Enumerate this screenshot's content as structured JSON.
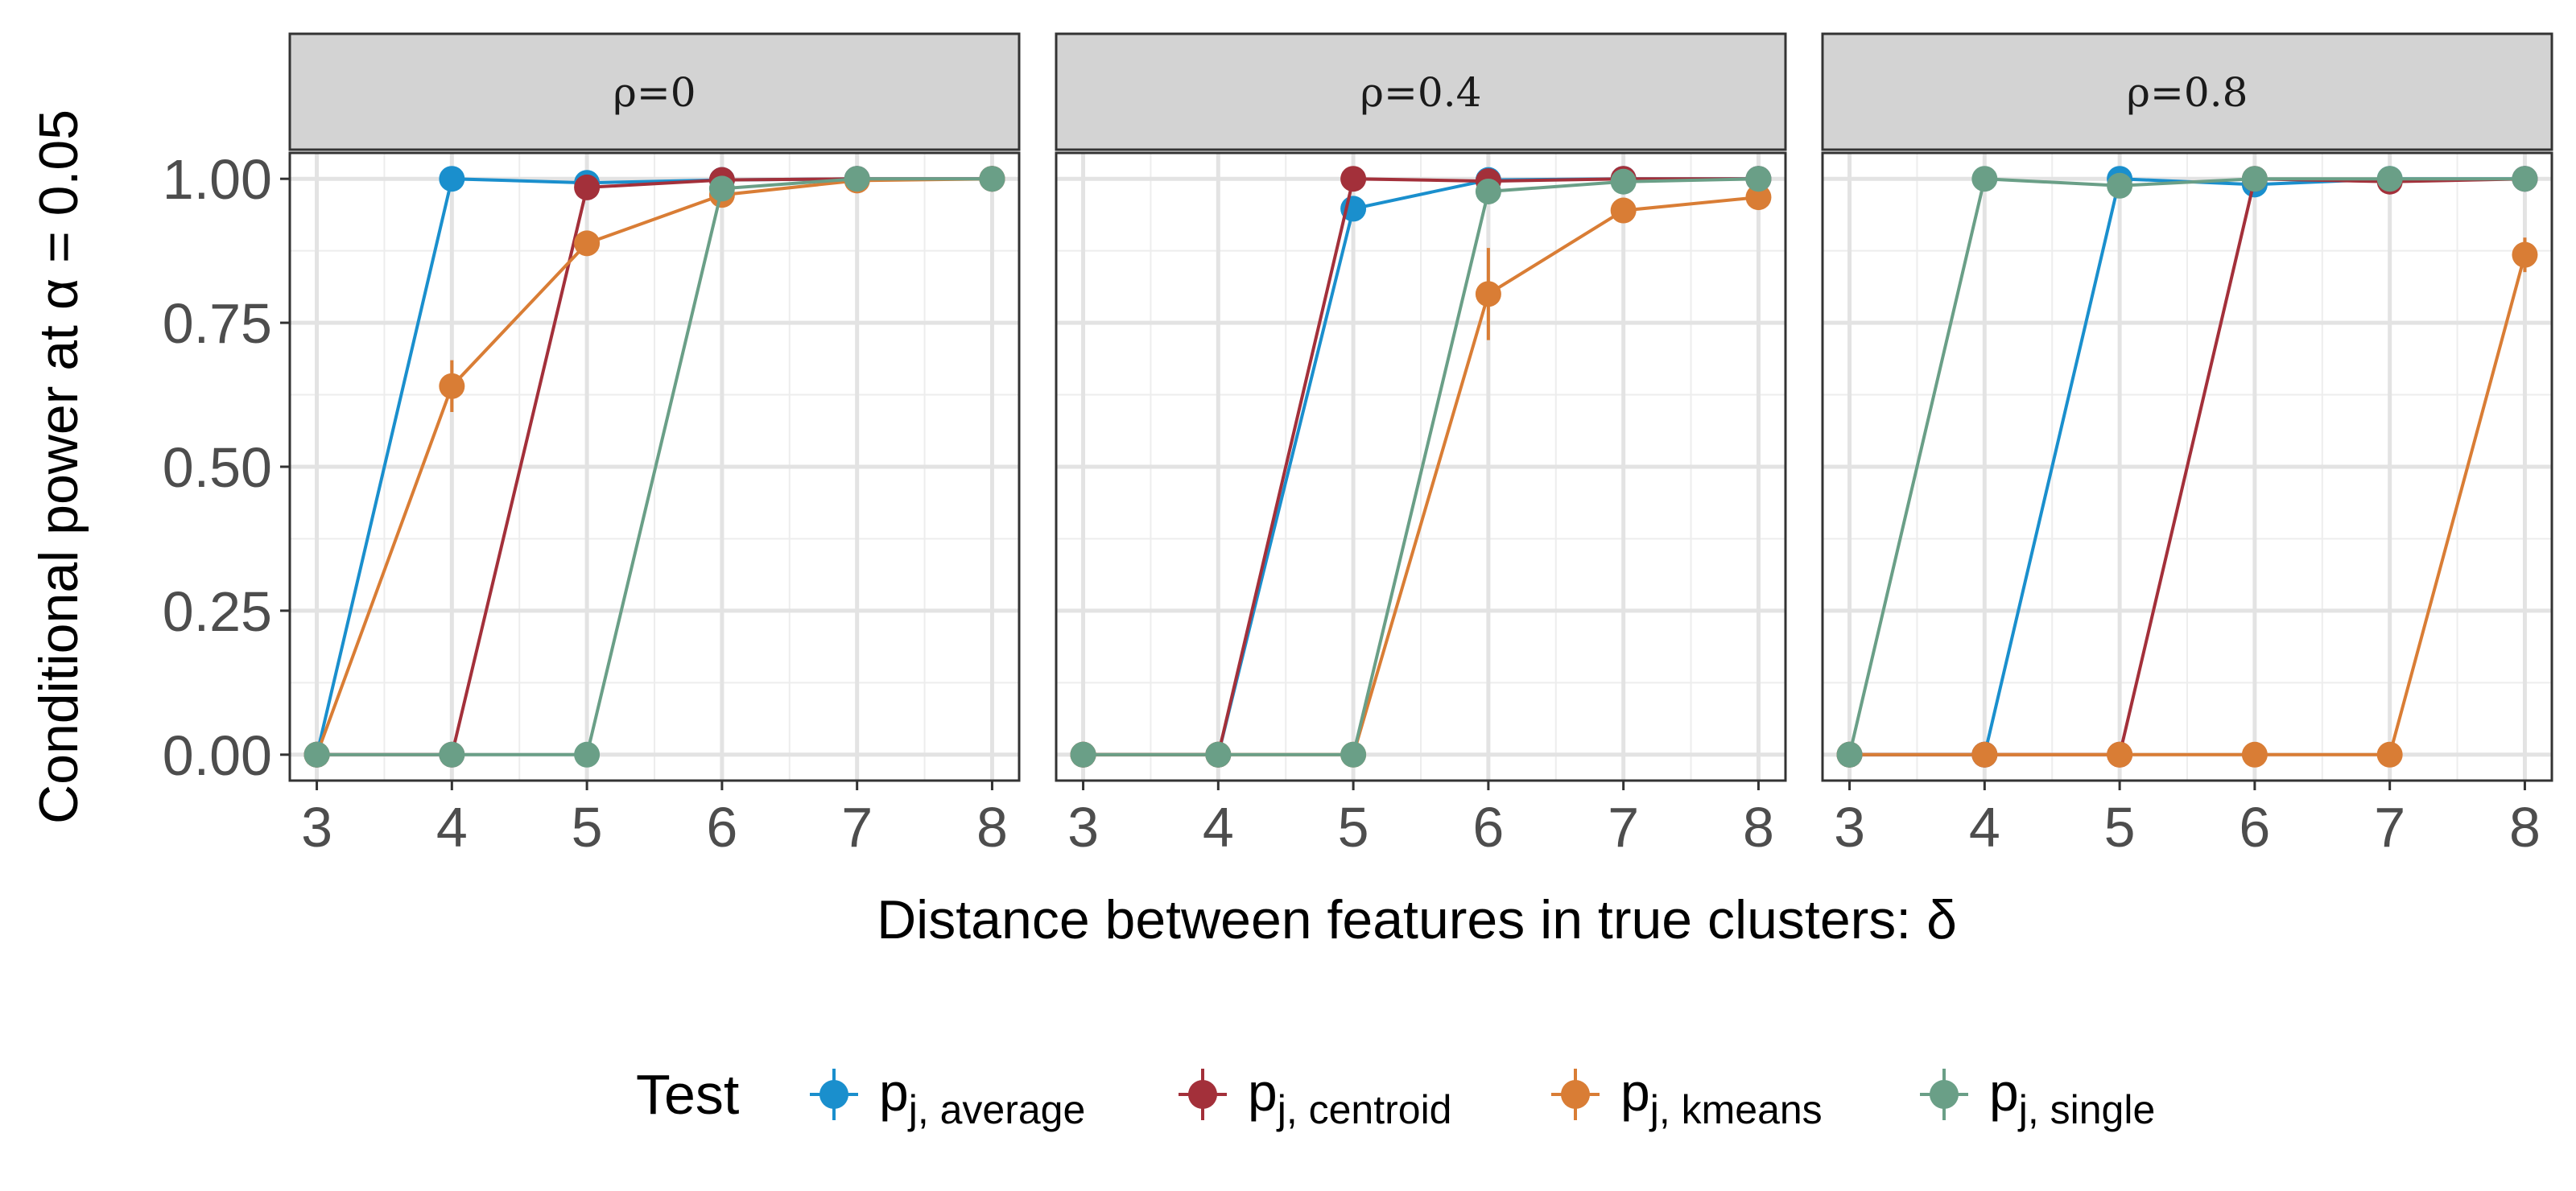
{
  "chart_data": {
    "type": "line",
    "ylabel": "Conditional power at α = 0.05",
    "xlabel": "Distance between features in true clusters: δ",
    "x": [
      3,
      4,
      5,
      6,
      7,
      8
    ],
    "xlim": [
      2.8,
      8.2
    ],
    "ylim": [
      -0.045,
      1.045
    ],
    "x_ticks": [
      "3",
      "4",
      "5",
      "6",
      "7",
      "8"
    ],
    "y_ticks": [
      "0.00",
      "0.25",
      "0.50",
      "0.75",
      "1.00"
    ],
    "y_tick_values": [
      0,
      0.25,
      0.5,
      0.75,
      1
    ],
    "legend": {
      "title": "Test",
      "position": "bottom",
      "entries": [
        {
          "main": "p",
          "sub": "j, average",
          "color": "#1a8fcd"
        },
        {
          "main": "p",
          "sub": "j, centroid",
          "color": "#a3303a"
        },
        {
          "main": "p",
          "sub": "j, kmeans",
          "color": "#d97d35"
        },
        {
          "main": "p",
          "sub": "j, single",
          "color": "#6a9f87"
        }
      ]
    },
    "panels": [
      {
        "title": "ρ=0",
        "series": [
          {
            "name": "average",
            "color": "#1a8fcd",
            "values": [
              0,
              1.0,
              0.993,
              0.998,
              1.0,
              1.0
            ],
            "error": [
              0,
              0.004,
              0.006,
              0.003,
              0.002,
              0.002
            ]
          },
          {
            "name": "centroid",
            "color": "#a3303a",
            "values": [
              0,
              0,
              0.985,
              0.998,
              1.0,
              1.0
            ],
            "error": [
              0,
              0,
              0.008,
              0.003,
              0.002,
              0.002
            ]
          },
          {
            "name": "kmeans",
            "color": "#d97d35",
            "values": [
              0,
              0.64,
              0.888,
              0.972,
              0.997,
              1.0
            ],
            "error": [
              0,
              0.045,
              0.02,
              0.01,
              0.003,
              0.002
            ]
          },
          {
            "name": "single",
            "color": "#6a9f87",
            "values": [
              0,
              0,
              0,
              0.983,
              1.0,
              1.0
            ],
            "error": [
              0,
              0,
              0,
              0.008,
              0.002,
              0.002
            ]
          }
        ]
      },
      {
        "title": "ρ=0.4",
        "series": [
          {
            "name": "average",
            "color": "#1a8fcd",
            "values": [
              0,
              0,
              0.948,
              0.998,
              1.0,
              1.0
            ],
            "error": [
              0,
              0,
              0.015,
              0.003,
              0.002,
              0.002
            ]
          },
          {
            "name": "centroid",
            "color": "#a3303a",
            "values": [
              0,
              0,
              1.0,
              0.996,
              1.0,
              1.0
            ],
            "error": [
              0,
              0,
              0.004,
              0.004,
              0.002,
              0.002
            ]
          },
          {
            "name": "kmeans",
            "color": "#d97d35",
            "values": [
              0,
              0,
              0,
              0.8,
              0.945,
              0.968
            ],
            "error": [
              0,
              0,
              0,
              0.08,
              0.02,
              0.012
            ]
          },
          {
            "name": "single",
            "color": "#6a9f87",
            "values": [
              0,
              0,
              0,
              0.978,
              0.995,
              1.0
            ],
            "error": [
              0,
              0,
              0,
              0.01,
              0.004,
              0.002
            ]
          }
        ]
      },
      {
        "title": "ρ=0.8",
        "series": [
          {
            "name": "average",
            "color": "#1a8fcd",
            "values": [
              0,
              0,
              1.0,
              0.99,
              1.0,
              1.0
            ],
            "error": [
              0,
              0,
              0.004,
              0.006,
              0.002,
              0.002
            ]
          },
          {
            "name": "centroid",
            "color": "#a3303a",
            "values": [
              0,
              0,
              0,
              1.0,
              0.995,
              1.0
            ],
            "error": [
              0,
              0,
              0,
              0.004,
              0.004,
              0.002
            ]
          },
          {
            "name": "kmeans",
            "color": "#d97d35",
            "values": [
              0,
              0,
              0,
              0,
              0,
              0.868
            ],
            "error": [
              0,
              0,
              0,
              0,
              0,
              0.03
            ]
          },
          {
            "name": "single",
            "color": "#6a9f87",
            "values": [
              0,
              1.0,
              0.988,
              1.0,
              1.0,
              1.0
            ],
            "error": [
              0,
              0.004,
              0.006,
              0.003,
              0.002,
              0.002
            ]
          }
        ]
      }
    ]
  }
}
